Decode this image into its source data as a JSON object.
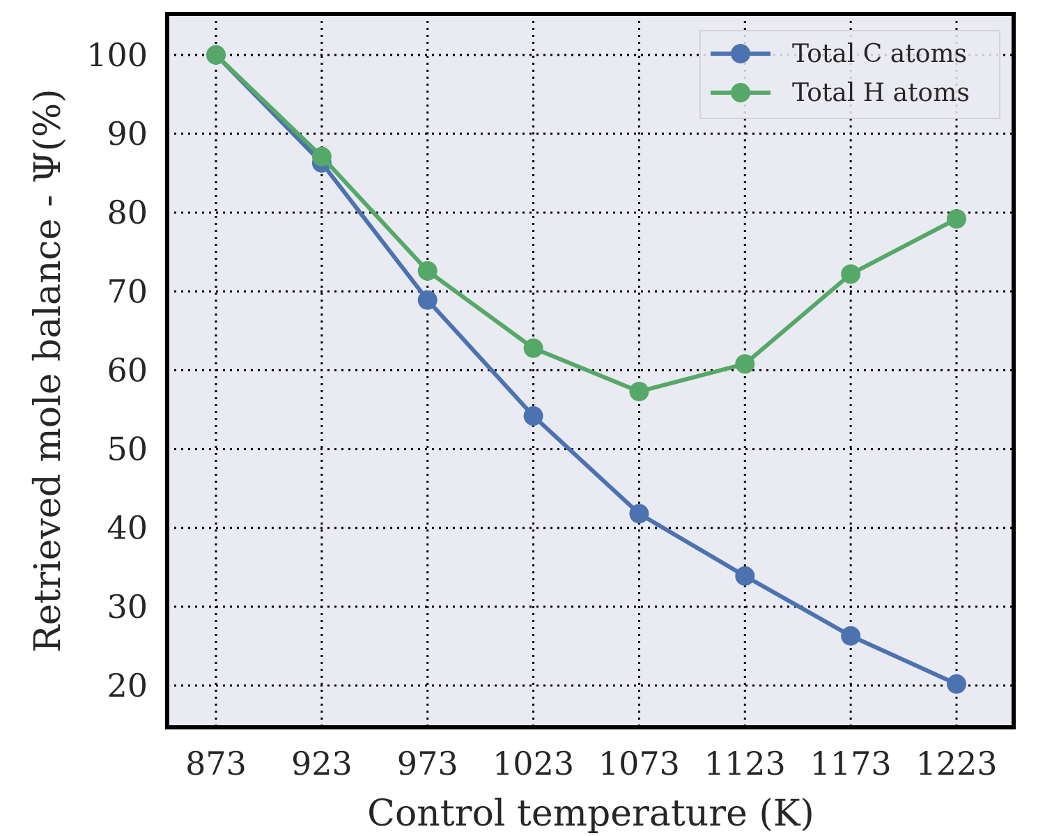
{
  "chart_data": {
    "type": "line",
    "xlabel": "Control temperature (K)",
    "ylabel": "Retrieved mole balance - Ψ(%)",
    "categories": [
      "873",
      "923",
      "973",
      "1023",
      "1073",
      "1123",
      "1173",
      "1223"
    ],
    "yticks": [
      "20",
      "30",
      "40",
      "50",
      "60",
      "70",
      "80",
      "90",
      "100"
    ],
    "ylim": [
      14.7,
      105.2
    ],
    "grid": true,
    "legend_position": "top-right",
    "series": [
      {
        "name": "Total C atoms",
        "color": "#4c72b0",
        "values": [
          100.0,
          86.3,
          68.9,
          54.2,
          41.8,
          33.9,
          26.3,
          20.2
        ]
      },
      {
        "name": "Total H atoms",
        "color": "#55a868",
        "values": [
          100.0,
          87.1,
          72.6,
          62.8,
          57.3,
          60.8,
          72.2,
          79.2
        ]
      }
    ],
    "plot_background": "#eaeaf2"
  }
}
